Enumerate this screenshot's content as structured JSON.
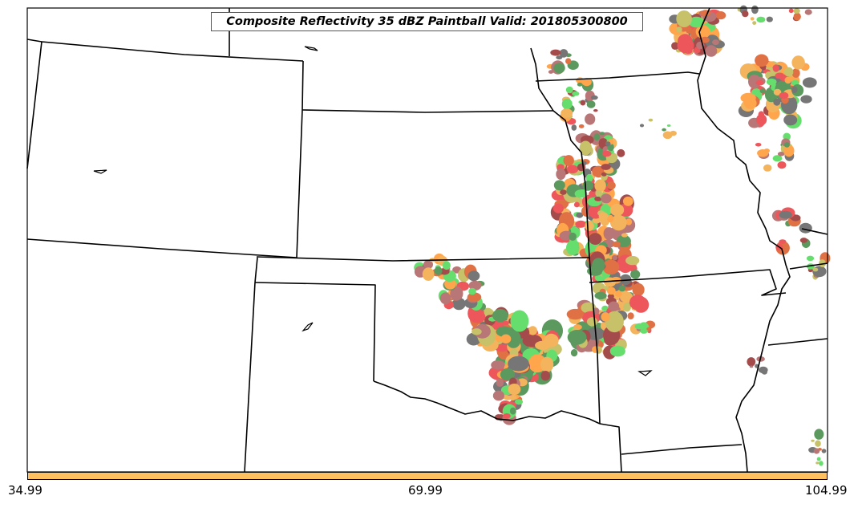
{
  "title": "Composite Reflectivity 35 dBZ Paintball Valid: 201805300800",
  "colorbar": {
    "color": "#ffc060",
    "ticks": [
      "34.99",
      "69.99",
      "104.99"
    ]
  },
  "member_colors": [
    "#e8282e",
    "#8b1a1a",
    "#ff8c1a",
    "#d84a12",
    "#3cd646",
    "#2e7d32",
    "#b8b040",
    "#a55050",
    "#505050",
    "#f0a030"
  ],
  "map": {
    "background": "#ffffff",
    "boundary_color": "#000000"
  }
}
